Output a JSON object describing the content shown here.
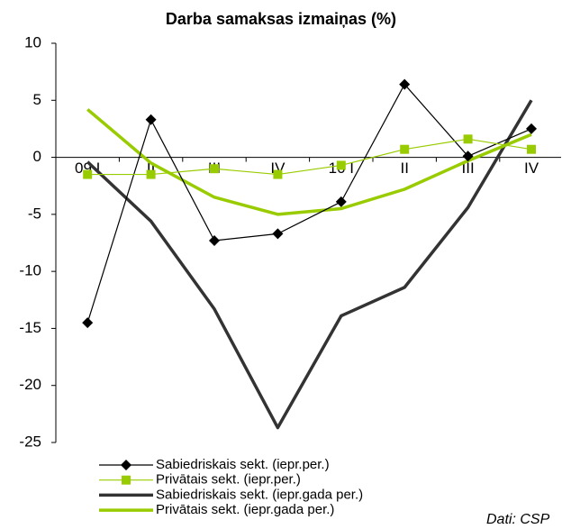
{
  "chart_data": {
    "type": "line",
    "title": "Darba samaksas izmaiņas (%)",
    "categories": [
      "09 I",
      "II",
      "III",
      "IV",
      "10 I",
      "II",
      "III",
      "IV"
    ],
    "series": [
      {
        "name": "Sabiedriskais sekt. (iepr.per.)",
        "color": "#000000",
        "line_width": 1.2,
        "marker": "diamond",
        "values": [
          -14.5,
          3.3,
          -7.3,
          -6.7,
          -3.9,
          6.4,
          0.1,
          2.5
        ]
      },
      {
        "name": "Privātais sekt. (iepr.per.)",
        "color": "#99cc00",
        "line_width": 1.2,
        "marker": "square",
        "values": [
          -1.5,
          -1.5,
          -1.0,
          -1.5,
          -0.7,
          0.7,
          1.6,
          0.7
        ]
      },
      {
        "name": "Sabiedriskais sekt. (iepr.gada per.)",
        "color": "#333333",
        "line_width": 3.5,
        "marker": null,
        "values": [
          -0.4,
          -5.6,
          -13.3,
          -23.7,
          -13.9,
          -11.4,
          -4.4,
          5.0
        ]
      },
      {
        "name": "Privātais sekt. (iepr.gada per.)",
        "color": "#99cc00",
        "line_width": 3.5,
        "marker": null,
        "values": [
          4.2,
          -0.5,
          -3.5,
          -5.0,
          -4.5,
          -2.8,
          -0.3,
          2.0
        ]
      }
    ],
    "ylim": [
      -25,
      10
    ],
    "yticks": [
      -25,
      -20,
      -15,
      -10,
      -5,
      0,
      5,
      10
    ],
    "annotation": "Dati: CSP"
  }
}
